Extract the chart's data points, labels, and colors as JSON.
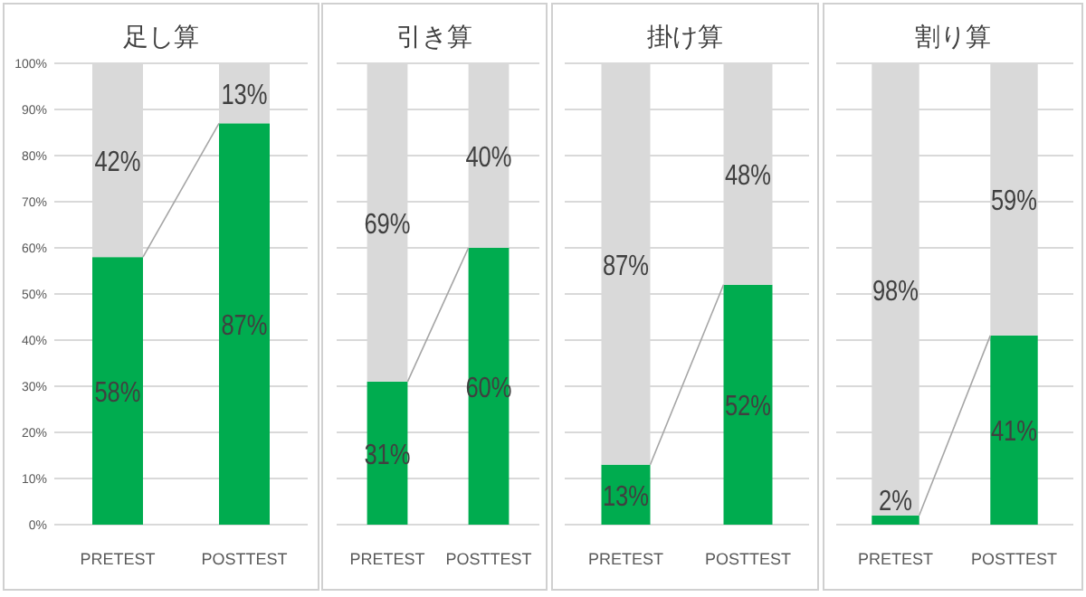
{
  "chart_data": [
    {
      "type": "bar",
      "title": "足し算",
      "categories": [
        "PRETEST",
        "POSTTEST"
      ],
      "stacked": true,
      "ylim": [
        0,
        100
      ],
      "yticks": [
        {
          "value": 0,
          "label": "0%"
        },
        {
          "value": 10,
          "label": "10%"
        },
        {
          "value": 20,
          "label": "20%"
        },
        {
          "value": 30,
          "label": "30%"
        },
        {
          "value": 40,
          "label": "40%"
        },
        {
          "value": 50,
          "label": "50%"
        },
        {
          "value": 60,
          "label": "60%"
        },
        {
          "value": 70,
          "label": "70%"
        },
        {
          "value": 80,
          "label": "80%"
        },
        {
          "value": 90,
          "label": "90%"
        },
        {
          "value": 100,
          "label": "100%"
        }
      ],
      "grid": "y",
      "series": [
        {
          "color": "#00ac4f",
          "values": [
            58,
            87
          ],
          "value_labels": [
            "58%",
            "87%"
          ]
        },
        {
          "color": "#d9d9d9",
          "values": [
            42,
            13
          ],
          "value_labels": [
            "42%",
            "13%"
          ]
        }
      ]
    },
    {
      "type": "bar",
      "title": "引き算",
      "categories": [
        "PRETEST",
        "POSTTEST"
      ],
      "stacked": true,
      "ylim": [
        0,
        100
      ],
      "yticks": [
        {
          "value": 0,
          "label": null
        },
        {
          "value": 10,
          "label": null
        },
        {
          "value": 20,
          "label": null
        },
        {
          "value": 30,
          "label": null
        },
        {
          "value": 40,
          "label": null
        },
        {
          "value": 50,
          "label": null
        },
        {
          "value": 60,
          "label": null
        },
        {
          "value": 70,
          "label": null
        },
        {
          "value": 80,
          "label": null
        },
        {
          "value": 90,
          "label": null
        },
        {
          "value": 100,
          "label": null
        }
      ],
      "tick_labels": "x",
      "grid": "y",
      "series": [
        {
          "color": "#00ac4f",
          "values": [
            31,
            60
          ],
          "value_labels": [
            "31%",
            "60%"
          ]
        },
        {
          "color": "#d9d9d9",
          "values": [
            69,
            40
          ],
          "value_labels": [
            "69%",
            "40%"
          ]
        }
      ]
    },
    {
      "type": "bar",
      "title": "掛け算",
      "categories": [
        "PRETEST",
        "POSTTEST"
      ],
      "stacked": true,
      "ylim": [
        0,
        100
      ],
      "yticks": [
        {
          "value": 0,
          "label": null
        },
        {
          "value": 10,
          "label": null
        },
        {
          "value": 20,
          "label": null
        },
        {
          "value": 30,
          "label": null
        },
        {
          "value": 40,
          "label": null
        },
        {
          "value": 50,
          "label": null
        },
        {
          "value": 60,
          "label": null
        },
        {
          "value": 70,
          "label": null
        },
        {
          "value": 80,
          "label": null
        },
        {
          "value": 90,
          "label": null
        },
        {
          "value": 100,
          "label": null
        }
      ],
      "tick_labels": "x",
      "grid": "y",
      "series": [
        {
          "color": "#00ac4f",
          "values": [
            13,
            52
          ],
          "value_labels": [
            "13%",
            "52%"
          ]
        },
        {
          "color": "#d9d9d9",
          "values": [
            87,
            48
          ],
          "value_labels": [
            "87%",
            "48%"
          ]
        }
      ]
    },
    {
      "type": "bar",
      "title": "割り算",
      "categories": [
        "PRETEST",
        "POSTTEST"
      ],
      "stacked": true,
      "ylim": [
        0,
        100
      ],
      "yticks": [
        {
          "value": 0,
          "label": null
        },
        {
          "value": 10,
          "label": null
        },
        {
          "value": 20,
          "label": null
        },
        {
          "value": 30,
          "label": null
        },
        {
          "value": 40,
          "label": null
        },
        {
          "value": 50,
          "label": null
        },
        {
          "value": 60,
          "label": null
        },
        {
          "value": 70,
          "label": null
        },
        {
          "value": 80,
          "label": null
        },
        {
          "value": 90,
          "label": null
        },
        {
          "value": 100,
          "label": null
        }
      ],
      "tick_labels": "x",
      "grid": "y",
      "series": [
        {
          "color": "#00ac4f",
          "values": [
            2,
            41
          ],
          "value_labels": [
            "2%",
            "41%"
          ]
        },
        {
          "color": "#d9d9d9",
          "values": [
            98,
            59
          ],
          "value_labels": [
            "98%",
            "59%"
          ]
        }
      ]
    }
  ]
}
